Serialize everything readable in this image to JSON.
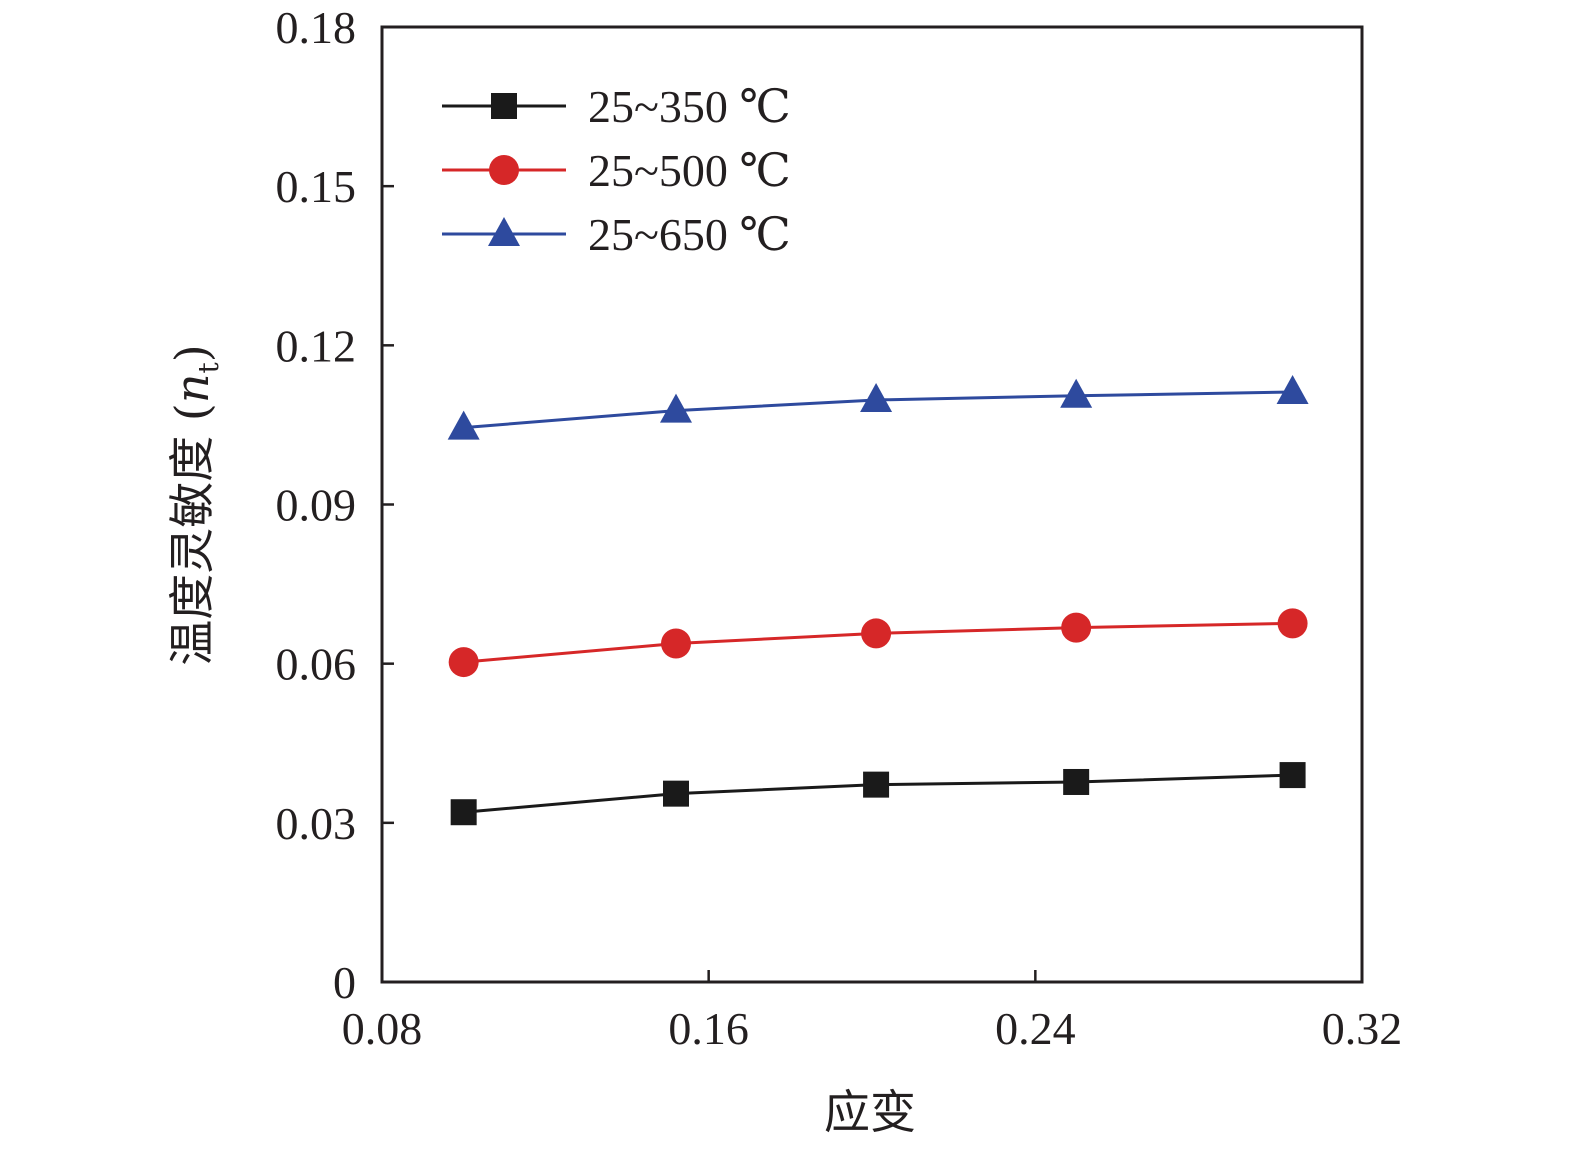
{
  "chart_data": {
    "type": "line",
    "title": "",
    "xlabel": "应变",
    "ylabel": "温度灵敏度",
    "ylabel_symbol": "n",
    "ylabel_subscript": "t",
    "xlim": [
      0.08,
      0.32
    ],
    "ylim": [
      0,
      0.18
    ],
    "xticks": [
      0.08,
      0.16,
      0.24,
      0.32
    ],
    "xtick_labels": [
      "0.08",
      "0.16",
      "0.24",
      "0.32"
    ],
    "yticks": [
      0,
      0.03,
      0.06,
      0.09,
      0.12,
      0.15,
      0.18
    ],
    "ytick_labels": [
      "0",
      "0.03",
      "0.06",
      "0.09",
      "0.12",
      "0.15",
      "0.18"
    ],
    "grid": false,
    "legend_position": "top-left",
    "x": [
      0.1,
      0.152,
      0.201,
      0.25,
      0.303
    ],
    "series": [
      {
        "name": "25~350 ℃",
        "color": "#1a1a1a",
        "marker": "square",
        "values": [
          0.032,
          0.0355,
          0.0372,
          0.0377,
          0.039
        ]
      },
      {
        "name": "25~500 ℃",
        "color": "#d62728",
        "marker": "circle",
        "values": [
          0.0603,
          0.0638,
          0.0657,
          0.0668,
          0.0676
        ]
      },
      {
        "name": "25~650 ℃",
        "color": "#2e4a9e",
        "marker": "triangle",
        "values": [
          0.1045,
          0.1077,
          0.1097,
          0.1105,
          0.1112
        ]
      }
    ]
  }
}
